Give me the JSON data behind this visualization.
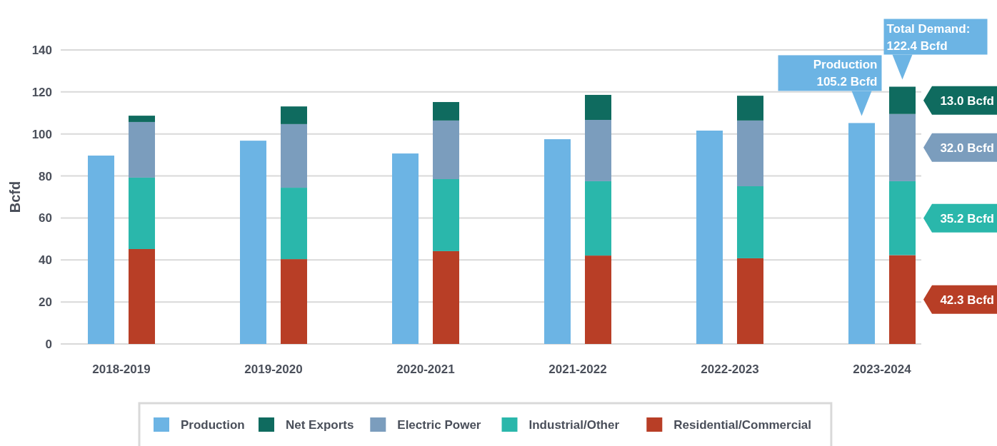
{
  "chart_data": {
    "type": "bar",
    "ylabel": "Bcfd",
    "categories": [
      "2018-2019",
      "2019-2020",
      "2020-2021",
      "2021-2022",
      "2022-2023",
      "2023-2024"
    ],
    "ylim": [
      0,
      140
    ],
    "yticks": [
      0,
      20,
      40,
      60,
      80,
      100,
      120,
      140
    ],
    "grid": "y",
    "legend": "bottom",
    "series": [
      {
        "name": "Production",
        "color": "#6cb4e4",
        "values": [
          89.7,
          96.8,
          90.7,
          97.5,
          101.6,
          105.2
        ]
      },
      {
        "name": "Residential/Commercial",
        "color": "#b83e26",
        "base": [
          0,
          0,
          0,
          0,
          0,
          0
        ],
        "values": [
          45.2,
          40.4,
          44.2,
          42.1,
          40.8,
          42.3
        ]
      },
      {
        "name": "Industrial/Other",
        "color": "#2ab7ab",
        "base": [
          45.2,
          40.4,
          44.2,
          42.1,
          40.8,
          42.3
        ],
        "values": [
          34.0,
          34.0,
          34.3,
          35.4,
          34.3,
          35.2
        ]
      },
      {
        "name": "Electric Power",
        "color": "#7b9dbd",
        "base": [
          79.2,
          74.4,
          78.5,
          77.5,
          75.1,
          77.5
        ],
        "values": [
          26.5,
          30.3,
          27.9,
          29.2,
          31.3,
          32.0
        ]
      },
      {
        "name": "Net Exports",
        "color": "#0f6b5f",
        "base": [
          105.7,
          104.7,
          106.4,
          106.7,
          106.4,
          109.5
        ],
        "values": [
          3.0,
          8.4,
          8.8,
          11.9,
          11.8,
          13.0
        ]
      }
    ],
    "annotations": [
      "Production\n105.2 Bcfd",
      "Total Demand:\n122.4 Bcfd",
      "13.0 Bcfd",
      "32.0 Bcfd",
      "35.2 Bcfd",
      "42.3 Bcfd"
    ]
  }
}
